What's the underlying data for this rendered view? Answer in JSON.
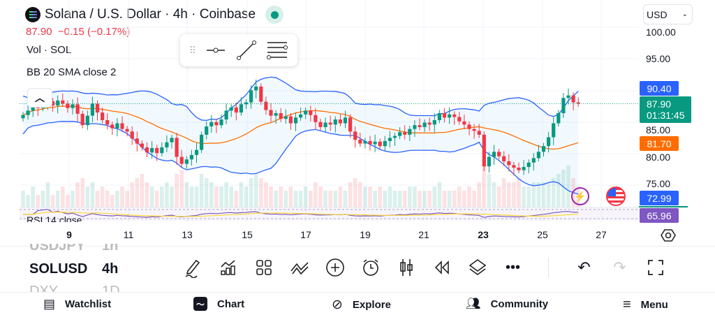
{
  "header": {
    "title": "Solana / U.S. Dollar · 4h · Coinbase",
    "price_line": "87.90  −0.15 (−0.17%)",
    "currency": "USD"
  },
  "legend": {
    "volume": "Vol · SOL",
    "bb": "BB 20 SMA close 2",
    "rsi": "RSI 14 close"
  },
  "price_axis": {
    "labels": [
      "100.00",
      "95.00",
      "85.00",
      "80.00",
      "75.00"
    ],
    "tags": {
      "bb_upper": "90.40",
      "last_price": "87.90",
      "countdown": "01:31:45",
      "bb_basis": "81.70",
      "bb_lower": "72.99",
      "rsi": "65.96"
    }
  },
  "time_axis": [
    "9",
    "11",
    "13",
    "15",
    "17",
    "19",
    "21",
    "23",
    "25",
    "27"
  ],
  "symbols": [
    {
      "symbol": "USDJPY",
      "interval": "1h"
    },
    {
      "symbol": "SOLUSD",
      "interval": "4h"
    },
    {
      "symbol": "DXY",
      "interval": "1D"
    }
  ],
  "toolbar_icons": [
    "pencil-icon",
    "indicators-icon",
    "layouts-icon",
    "patterns-icon",
    "add-icon",
    "alert-icon",
    "candles-icon",
    "replay-icon",
    "layers-icon",
    "more-icon",
    "undo-icon",
    "redo-icon",
    "fullscreen-icon"
  ],
  "nav": {
    "watchlist": "Watchlist",
    "chart": "Chart",
    "explore": "Explore",
    "community": "Community",
    "menu": "Menu"
  },
  "colors": {
    "up": "#089981",
    "down": "#f23645",
    "bb_band": "#2962ff",
    "bb_basis": "#ff6d00",
    "rsi": "#7e57c2",
    "rsi_ma": "#fdd835"
  },
  "chart_data": {
    "type": "candlestick",
    "symbol": "SOLUSD",
    "interval": "4h",
    "ylim": [
      72,
      101
    ],
    "closes": [
      86.1,
      86.8,
      87.5,
      87.2,
      87.7,
      88.3,
      87.6,
      88.4,
      87.9,
      87.2,
      87.8,
      86.3,
      84.5,
      86.0,
      87.9,
      86.5,
      85.3,
      84.6,
      84.0,
      84.8,
      83.9,
      83.5,
      82.4,
      81.6,
      81.0,
      80.2,
      80.9,
      80.1,
      81.0,
      81.8,
      82.5,
      79.5,
      78.4,
      79.1,
      79.8,
      80.6,
      83.0,
      84.3,
      85.0,
      84.5,
      85.4,
      86.8,
      87.3,
      86.5,
      87.8,
      88.1,
      90.0,
      90.6,
      88.2,
      86.9,
      86.0,
      86.4,
      85.5,
      85.9,
      84.8,
      85.7,
      86.2,
      86.8,
      86.1,
      85.0,
      84.2,
      84.9,
      84.6,
      85.4,
      84.8,
      85.7,
      83.5,
      82.2,
      81.6,
      82.0,
      81.5,
      81.9,
      81.2,
      82.0,
      82.5,
      82.8,
      83.4,
      83.0,
      83.9,
      84.5,
      84.2,
      84.9,
      84.6,
      85.3,
      86.4,
      85.7,
      86.2,
      85.8,
      85.1,
      84.6,
      83.9,
      83.6,
      83.0,
      78.0,
      79.5,
      80.3,
      79.6,
      78.8,
      78.2,
      77.8,
      77.4,
      77.9,
      78.6,
      79.3,
      80.3,
      81.2,
      82.6,
      84.8,
      86.4,
      88.8,
      89.2,
      88.1,
      87.9
    ],
    "volumes": [
      4,
      3,
      5,
      3,
      4,
      6,
      3,
      4,
      5,
      3,
      4,
      6,
      7,
      5,
      6,
      4,
      5,
      4,
      3,
      4,
      5,
      4,
      6,
      7,
      8,
      6,
      5,
      4,
      5,
      6,
      5,
      8,
      9,
      6,
      5,
      5,
      8,
      7,
      6,
      5,
      5,
      6,
      5,
      4,
      6,
      5,
      7,
      8,
      7,
      6,
      5,
      4,
      5,
      4,
      5,
      4,
      4,
      5,
      4,
      6,
      5,
      4,
      4,
      4,
      5,
      4,
      6,
      7,
      6,
      5,
      5,
      4,
      5,
      4,
      5,
      4,
      4,
      4,
      5,
      5,
      4,
      4,
      4,
      5,
      6,
      4,
      4,
      4,
      5,
      4,
      5,
      4,
      6,
      10,
      8,
      6,
      5,
      7,
      6,
      6,
      7,
      5,
      5,
      6,
      6,
      6,
      6,
      7,
      8,
      9,
      10,
      7,
      5
    ]
  }
}
